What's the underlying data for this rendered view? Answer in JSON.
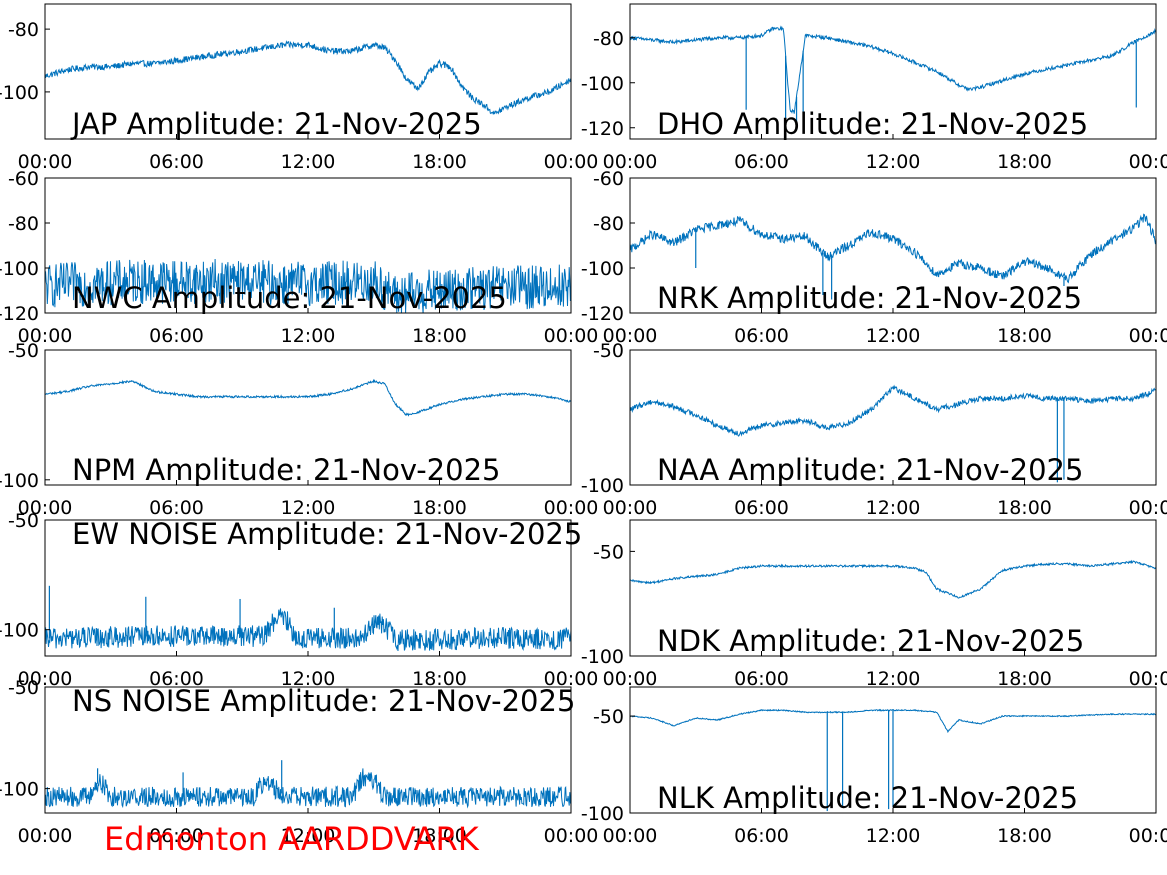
{
  "footer_label": "Edmonton AARDDVARK",
  "colors": {
    "series": "#0072BD",
    "footer": "#ff0000",
    "axis": "#000000"
  },
  "chart_data": [
    {
      "type": "line",
      "title": "JAP Amplitude: 21-Nov-2025",
      "x_ticks": [
        "00:00",
        "06:00",
        "12:00",
        "18:00",
        "00:00"
      ],
      "x_range_hours": [
        0,
        24
      ],
      "y_ticks": [
        "-80",
        "-100"
      ],
      "y_tick_values": [
        -80,
        -100
      ],
      "ylim": [
        -115,
        -72
      ],
      "noise": 1.0,
      "x_hours": [
        0,
        0.5,
        1,
        2,
        3,
        4,
        5,
        6,
        7,
        8,
        9,
        10,
        11,
        12,
        13,
        14,
        15,
        15.5,
        16,
        16.5,
        17,
        17.5,
        18,
        18.5,
        19,
        19.5,
        20,
        20.5,
        21,
        22,
        23,
        24
      ],
      "values": [
        -95,
        -94,
        -93,
        -92,
        -92,
        -91,
        -91,
        -90,
        -89,
        -88,
        -87,
        -86,
        -85,
        -85,
        -87,
        -87,
        -85,
        -86,
        -90,
        -96,
        -99,
        -94,
        -91,
        -92,
        -98,
        -102,
        -104,
        -107,
        -105,
        -102,
        -100,
        -96
      ]
    },
    {
      "type": "line",
      "title": "DHO Amplitude: 21-Nov-2025",
      "x_ticks": [
        "00:00",
        "06:00",
        "12:00",
        "18:00",
        "00:00"
      ],
      "x_range_hours": [
        0,
        24
      ],
      "y_ticks": [
        "-80",
        "-100",
        "-120"
      ],
      "y_tick_values": [
        -80,
        -100,
        -120
      ],
      "ylim": [
        -125,
        -65
      ],
      "noise": 0.8,
      "x_hours": [
        0,
        1,
        2,
        3,
        4,
        5,
        6,
        6.5,
        7,
        7.3,
        7.5,
        8,
        9,
        10,
        11,
        12,
        13,
        14,
        15,
        15.5,
        16,
        17,
        18,
        19,
        20,
        21,
        22,
        23,
        24
      ],
      "values": [
        -80,
        -81,
        -82,
        -81,
        -80,
        -80,
        -79,
        -76,
        -76,
        -112,
        -113,
        -79,
        -80,
        -82,
        -84,
        -87,
        -91,
        -95,
        -101,
        -103,
        -102,
        -99,
        -96,
        -94,
        -92,
        -90,
        -88,
        -82,
        -77
      ],
      "spikes": [
        [
          5.3,
          -112
        ],
        [
          7.1,
          -122
        ],
        [
          7.6,
          -121
        ],
        [
          7.9,
          -122
        ],
        [
          23.1,
          -111
        ]
      ]
    },
    {
      "type": "line",
      "title": "NWC Amplitude: 21-Nov-2025",
      "x_ticks": [
        "00:00",
        "06:00",
        "12:00",
        "18:00",
        "00:00"
      ],
      "x_range_hours": [
        0,
        24
      ],
      "y_ticks": [
        "-60",
        "-80",
        "-100",
        "-120"
      ],
      "y_tick_values": [
        -60,
        -80,
        -100,
        -120
      ],
      "ylim": [
        -120,
        -60
      ],
      "noise": 10.0,
      "x_hours": [
        0,
        4,
        8,
        12,
        15,
        16,
        17,
        20,
        24
      ],
      "values": [
        -108,
        -106,
        -106,
        -107,
        -106,
        -113,
        -111,
        -109,
        -108
      ]
    },
    {
      "type": "line",
      "title": "NRK Amplitude: 21-Nov-2025",
      "x_ticks": [
        "00:00",
        "06:00",
        "12:00",
        "18:00",
        "00:00"
      ],
      "x_range_hours": [
        0,
        24
      ],
      "y_ticks": [
        "-60",
        "-80",
        "-100",
        "-120"
      ],
      "y_tick_values": [
        -60,
        -80,
        -100,
        -120
      ],
      "ylim": [
        -120,
        -60
      ],
      "noise": 2.0,
      "x_hours": [
        0,
        1,
        2,
        3,
        4,
        5,
        6,
        7,
        8,
        9,
        10,
        11,
        12,
        13,
        14,
        15,
        16,
        17,
        18,
        19,
        20,
        21,
        22,
        23,
        23.5,
        24
      ],
      "values": [
        -92,
        -85,
        -89,
        -83,
        -81,
        -79,
        -85,
        -87,
        -86,
        -95,
        -90,
        -84,
        -87,
        -93,
        -103,
        -98,
        -100,
        -104,
        -97,
        -100,
        -105,
        -94,
        -88,
        -82,
        -77,
        -88
      ],
      "spikes": [
        [
          8.8,
          -112
        ],
        [
          9.2,
          -114
        ],
        [
          19.8,
          -108
        ],
        [
          3.0,
          -100
        ]
      ]
    },
    {
      "type": "line",
      "title": "NPM Amplitude: 21-Nov-2025",
      "x_ticks": [
        "00:00",
        "06:00",
        "12:00",
        "18:00",
        "00:00"
      ],
      "x_range_hours": [
        0,
        24
      ],
      "y_ticks": [
        "-50",
        "-100"
      ],
      "y_tick_values": [
        -50,
        -100
      ],
      "ylim": [
        -102,
        -50
      ],
      "noise": 0.4,
      "x_hours": [
        0,
        1,
        2,
        3,
        4,
        5,
        6,
        7,
        8,
        9,
        10,
        11,
        12,
        13,
        14,
        15,
        15.5,
        16,
        16.5,
        17,
        18,
        19,
        20,
        21,
        22,
        23,
        24
      ],
      "values": [
        -67,
        -66,
        -64,
        -63,
        -62,
        -66,
        -67,
        -68,
        -68,
        -68,
        -68,
        -68,
        -68,
        -67,
        -65,
        -62,
        -63,
        -71,
        -75,
        -74,
        -71,
        -69,
        -68,
        -67,
        -67,
        -68,
        -70
      ]
    },
    {
      "type": "line",
      "title": "NAA Amplitude: 21-Nov-2025",
      "x_ticks": [
        "00:00",
        "06:00",
        "12:00",
        "18:00",
        "00:00"
      ],
      "x_range_hours": [
        0,
        24
      ],
      "y_ticks": [
        "-50",
        "-100"
      ],
      "y_tick_values": [
        -50,
        -100
      ],
      "ylim": [
        -100,
        -50
      ],
      "noise": 1.0,
      "x_hours": [
        0,
        1,
        2,
        3,
        4,
        5,
        6,
        7,
        8,
        9,
        10,
        11,
        12,
        13,
        14,
        15,
        16,
        17,
        18,
        19,
        20,
        21,
        22,
        23,
        24
      ],
      "values": [
        -72,
        -69,
        -71,
        -74,
        -78,
        -81,
        -78,
        -77,
        -76,
        -79,
        -77,
        -72,
        -64,
        -68,
        -72,
        -70,
        -68,
        -68,
        -67,
        -68,
        -68,
        -69,
        -68,
        -68,
        -65
      ],
      "spikes": [
        [
          19.5,
          -99
        ],
        [
          19.8,
          -98
        ]
      ]
    },
    {
      "type": "line",
      "title": "EW NOISE Amplitude: 21-Nov-2025",
      "x_ticks": [
        "00:00",
        "06:00",
        "12:00",
        "18:00",
        "00:00"
      ],
      "x_range_hours": [
        0,
        24
      ],
      "y_ticks": [
        "-50",
        "-100"
      ],
      "y_tick_values": [
        -50,
        -100
      ],
      "ylim": [
        -112,
        -50
      ],
      "noise": 5.0,
      "x_hours": [
        0,
        5,
        10,
        10.5,
        11,
        11.5,
        14.5,
        15,
        15.5,
        16,
        20,
        24
      ],
      "values": [
        -104,
        -103,
        -103,
        -95,
        -95,
        -104,
        -104,
        -97,
        -98,
        -105,
        -104,
        -104
      ],
      "spikes": [
        [
          0.2,
          -80
        ],
        [
          4.6,
          -85
        ],
        [
          8.9,
          -86
        ],
        [
          13.2,
          -90
        ]
      ]
    },
    {
      "type": "line",
      "title": "NDK Amplitude: 21-Nov-2025",
      "x_ticks": [
        "00:00",
        "06:00",
        "12:00",
        "18:00",
        "00:00"
      ],
      "x_range_hours": [
        0,
        24
      ],
      "y_ticks": [
        "-50",
        "-100"
      ],
      "y_tick_values": [
        -50,
        -100
      ],
      "ylim": [
        -100,
        -35
      ],
      "noise": 0.5,
      "x_hours": [
        0,
        1,
        2,
        3,
        4,
        5,
        6,
        8,
        10,
        12,
        13,
        13.5,
        14,
        15,
        16,
        17,
        18,
        19,
        20,
        21,
        22,
        23,
        24
      ],
      "values": [
        -64,
        -65,
        -63,
        -62,
        -61,
        -58,
        -57,
        -57,
        -57,
        -57,
        -58,
        -60,
        -68,
        -72,
        -68,
        -59,
        -57,
        -56,
        -56,
        -57,
        -56,
        -55,
        -58
      ]
    },
    {
      "type": "line",
      "title": "NS NOISE Amplitude: 21-Nov-2025",
      "x_ticks": [
        "00:00",
        "06:00",
        "12:00",
        "18:00",
        "00:00"
      ],
      "x_range_hours": [
        0,
        24
      ],
      "y_ticks": [
        "-50",
        "-100"
      ],
      "y_tick_values": [
        -50,
        -100
      ],
      "ylim": [
        -112,
        -50
      ],
      "noise": 5.0,
      "x_hours": [
        0,
        2,
        2.5,
        3,
        9.5,
        10,
        11,
        14,
        14.5,
        15,
        15.5,
        20,
        24
      ],
      "values": [
        -104,
        -104,
        -96,
        -104,
        -104,
        -96,
        -104,
        -104,
        -95,
        -96,
        -104,
        -104,
        -104
      ],
      "spikes": [
        [
          2.4,
          -90
        ],
        [
          6.3,
          -92
        ],
        [
          10.8,
          -86
        ]
      ]
    },
    {
      "type": "line",
      "title": "NLK Amplitude: 21-Nov-2025",
      "x_ticks": [
        "00:00",
        "06:00",
        "12:00",
        "18:00",
        "00:00"
      ],
      "x_range_hours": [
        0,
        24
      ],
      "y_ticks": [
        "-50",
        "-100"
      ],
      "y_tick_values": [
        -50,
        -100
      ],
      "ylim": [
        -100,
        -35
      ],
      "noise": 0.3,
      "x_hours": [
        0,
        1,
        2,
        3,
        4,
        5,
        6,
        7,
        8,
        9,
        10,
        11,
        12,
        13,
        14,
        14.5,
        15,
        16,
        17,
        18,
        20,
        22,
        24
      ],
      "values": [
        -50,
        -51,
        -55,
        -51,
        -52,
        -49,
        -47,
        -47,
        -48,
        -48,
        -48,
        -47,
        -47,
        -47,
        -48,
        -58,
        -52,
        -54,
        -50,
        -50,
        -50,
        -49,
        -49
      ],
      "spikes": [
        [
          9.0,
          -99
        ],
        [
          9.7,
          -97
        ],
        [
          11.8,
          -98
        ],
        [
          12.0,
          -97
        ]
      ]
    }
  ]
}
